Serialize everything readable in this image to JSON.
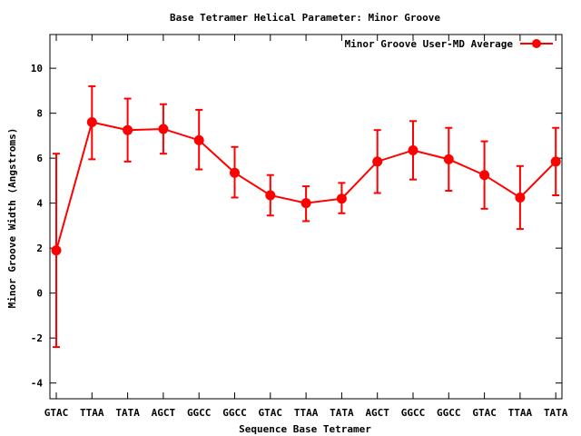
{
  "chart_data": {
    "type": "line",
    "title": "Base Tetramer Helical Parameter: Minor Groove",
    "xlabel": "Sequence Base Tetramer",
    "ylabel": "Minor Groove Width (Angstroms)",
    "categories": [
      "GTAC",
      "TTAA",
      "TATA",
      "AGCT",
      "GGCC",
      "GGCC",
      "GTAC",
      "TTAA",
      "TATA",
      "AGCT",
      "GGCC",
      "GGCC",
      "GTAC",
      "TTAA",
      "TATA"
    ],
    "ylim": [
      -4.7,
      11.5
    ],
    "yticks": [
      -4,
      -2,
      0,
      2,
      4,
      6,
      8,
      10
    ],
    "grid": false,
    "legend_position": "top-right",
    "series": [
      {
        "name": "Minor Groove User-MD Average",
        "color": "#ff0000",
        "values": [
          1.9,
          7.6,
          7.25,
          7.3,
          6.8,
          5.35,
          4.35,
          4.0,
          4.2,
          5.85,
          6.35,
          5.95,
          5.25,
          4.25,
          5.85
        ],
        "err_low": [
          -2.4,
          5.95,
          5.85,
          6.2,
          5.5,
          4.25,
          3.45,
          3.2,
          3.55,
          4.45,
          5.05,
          4.55,
          3.75,
          2.85,
          4.35
        ],
        "err_high": [
          6.2,
          9.2,
          8.65,
          8.4,
          8.15,
          6.5,
          5.25,
          4.75,
          4.9,
          7.25,
          7.65,
          7.35,
          6.75,
          5.65,
          7.35
        ]
      }
    ]
  }
}
